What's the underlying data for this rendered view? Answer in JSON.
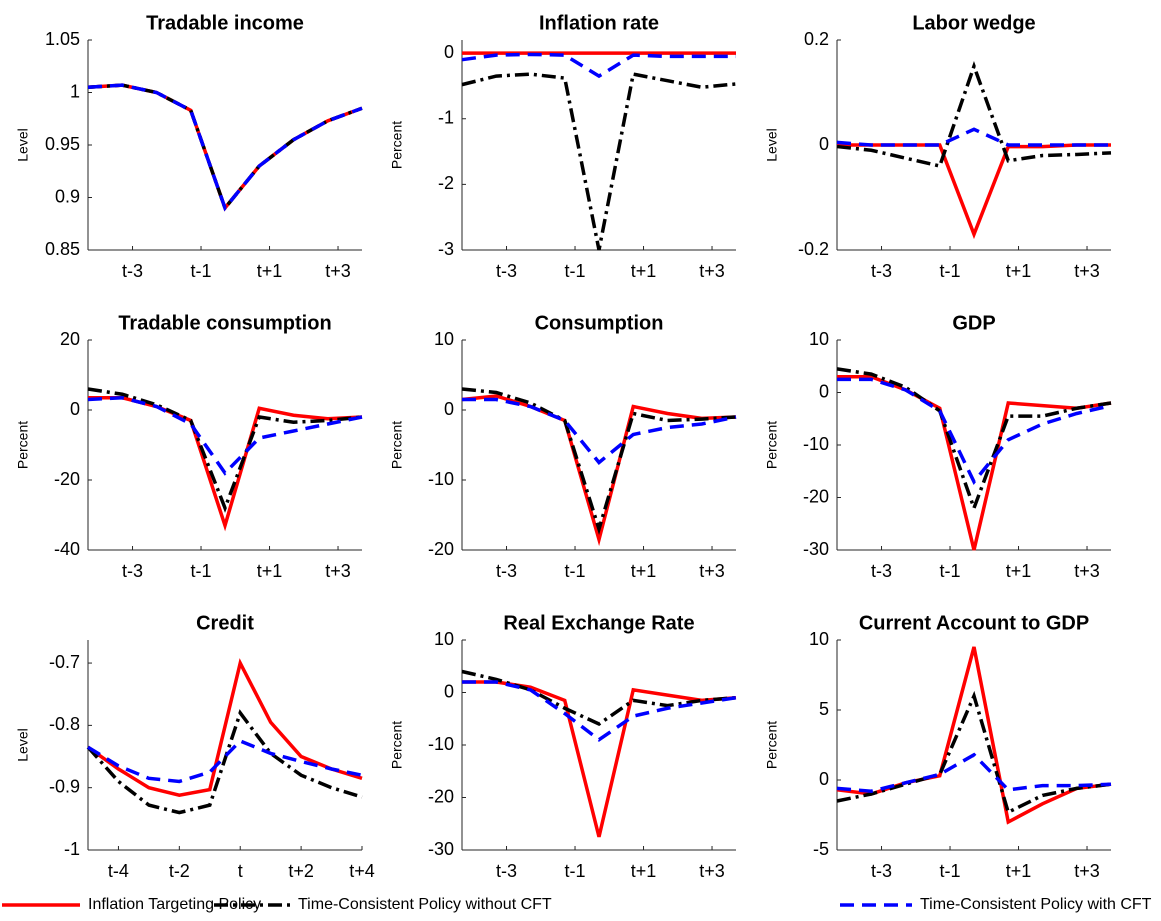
{
  "chart_data": [
    {
      "type": "line",
      "title": "Tradable income",
      "ylabel": "Level",
      "x": [
        1,
        2,
        3,
        4,
        5,
        6,
        7,
        8,
        9
      ],
      "xlim": [
        1,
        9
      ],
      "xticks": [
        {
          "value": 2.3,
          "label": "t-3"
        },
        {
          "value": 4.3,
          "label": "t-1"
        },
        {
          "value": 6.3,
          "label": "t+1"
        },
        {
          "value": 8.3,
          "label": "t+3"
        }
      ],
      "ylim": [
        0.85,
        1.05
      ],
      "yticks": [
        0.85,
        0.9,
        0.95,
        1,
        1.05
      ],
      "series": [
        {
          "name": "Inflation Targeting Policy",
          "color": "#ff0000",
          "line_style": "-",
          "values": [
            1.005,
            1.007,
            1.0,
            0.983,
            0.89,
            0.93,
            0.955,
            0.973,
            0.985
          ]
        },
        {
          "name": "Time-Consistent Policy without CFT",
          "color": "#000000",
          "line_style": "-.",
          "values": [
            1.005,
            1.007,
            1.0,
            0.983,
            0.89,
            0.93,
            0.955,
            0.973,
            0.985
          ]
        },
        {
          "name": "Time-Consistent Policy with CFT",
          "color": "#0000ff",
          "line_style": "--",
          "values": [
            1.005,
            1.007,
            1.0,
            0.983,
            0.89,
            0.93,
            0.955,
            0.973,
            0.985
          ]
        }
      ]
    },
    {
      "type": "line",
      "title": "Inflation rate",
      "ylabel": "Percent",
      "x": [
        1,
        2,
        3,
        4,
        5,
        6,
        7,
        8,
        9
      ],
      "xlim": [
        1,
        9
      ],
      "xticks": [
        {
          "value": 2.3,
          "label": "t-3"
        },
        {
          "value": 4.3,
          "label": "t-1"
        },
        {
          "value": 6.3,
          "label": "t+1"
        },
        {
          "value": 8.3,
          "label": "t+3"
        }
      ],
      "ylim": [
        -3,
        0.2
      ],
      "yticks": [
        -3,
        -2,
        -1,
        0
      ],
      "series": [
        {
          "color": "#ff0000",
          "line_style": "-",
          "values": [
            0,
            0,
            0,
            0,
            0,
            0,
            0,
            0,
            0
          ]
        },
        {
          "color": "#000000",
          "line_style": "-.",
          "values": [
            -0.48,
            -0.35,
            -0.32,
            -0.38,
            -3.0,
            -0.32,
            -0.42,
            -0.52,
            -0.47
          ]
        },
        {
          "color": "#0000ff",
          "line_style": "--",
          "values": [
            -0.1,
            -0.03,
            -0.02,
            -0.03,
            -0.35,
            -0.03,
            -0.05,
            -0.05,
            -0.05
          ]
        }
      ]
    },
    {
      "type": "line",
      "title": "Labor wedge",
      "ylabel": "Level",
      "x": [
        1,
        2,
        3,
        4,
        5,
        6,
        7,
        8,
        9
      ],
      "xlim": [
        1,
        9
      ],
      "xticks": [
        {
          "value": 2.3,
          "label": "t-3"
        },
        {
          "value": 4.3,
          "label": "t-1"
        },
        {
          "value": 6.3,
          "label": "t+1"
        },
        {
          "value": 8.3,
          "label": "t+3"
        }
      ],
      "ylim": [
        -0.2,
        0.2
      ],
      "yticks": [
        -0.2,
        0,
        0.2
      ],
      "series": [
        {
          "color": "#ff0000",
          "line_style": "-",
          "values": [
            0,
            0,
            0,
            0,
            -0.17,
            -0.003,
            -0.003,
            0,
            0
          ]
        },
        {
          "color": "#000000",
          "line_style": "-.",
          "values": [
            -0.003,
            -0.01,
            -0.025,
            -0.04,
            0.15,
            -0.03,
            -0.02,
            -0.018,
            -0.015
          ]
        },
        {
          "color": "#0000ff",
          "line_style": "--",
          "values": [
            0.005,
            0,
            0,
            0,
            0.03,
            0,
            0,
            0,
            0
          ]
        }
      ]
    },
    {
      "type": "line",
      "title": "Tradable consumption",
      "ylabel": "Percent",
      "x": [
        1,
        2,
        3,
        4,
        5,
        6,
        7,
        8,
        9
      ],
      "xlim": [
        1,
        9
      ],
      "xticks": [
        {
          "value": 2.3,
          "label": "t-3"
        },
        {
          "value": 4.3,
          "label": "t-1"
        },
        {
          "value": 6.3,
          "label": "t+1"
        },
        {
          "value": 8.3,
          "label": "t+3"
        }
      ],
      "ylim": [
        -40,
        20
      ],
      "yticks": [
        -40,
        -20,
        0,
        20
      ],
      "series": [
        {
          "color": "#ff0000",
          "line_style": "-",
          "values": [
            3.5,
            3.5,
            1,
            -3,
            -33,
            0.5,
            -1.5,
            -2.5,
            -2
          ]
        },
        {
          "color": "#000000",
          "line_style": "-.",
          "values": [
            6,
            4.5,
            1.5,
            -3,
            -28,
            -2,
            -3.5,
            -3,
            -2
          ]
        },
        {
          "color": "#0000ff",
          "line_style": "--",
          "values": [
            3,
            3.5,
            1,
            -4,
            -18,
            -8,
            -6,
            -4,
            -2
          ]
        }
      ]
    },
    {
      "type": "line",
      "title": "Consumption",
      "ylabel": "Percent",
      "x": [
        1,
        2,
        3,
        4,
        5,
        6,
        7,
        8,
        9
      ],
      "xlim": [
        1,
        9
      ],
      "xticks": [
        {
          "value": 2.3,
          "label": "t-3"
        },
        {
          "value": 4.3,
          "label": "t-1"
        },
        {
          "value": 6.3,
          "label": "t+1"
        },
        {
          "value": 8.3,
          "label": "t+3"
        }
      ],
      "ylim": [
        -20,
        10
      ],
      "yticks": [
        -20,
        -10,
        0,
        10
      ],
      "series": [
        {
          "color": "#ff0000",
          "line_style": "-",
          "values": [
            1.5,
            2,
            0.5,
            -1.5,
            -18.5,
            0.5,
            -0.5,
            -1.2,
            -1
          ]
        },
        {
          "color": "#000000",
          "line_style": "-.",
          "values": [
            3,
            2.5,
            1,
            -1.5,
            -17,
            -0.5,
            -1.5,
            -1.3,
            -1
          ]
        },
        {
          "color": "#0000ff",
          "line_style": "--",
          "values": [
            1.5,
            1.5,
            0.5,
            -1.5,
            -7.5,
            -3.5,
            -2.5,
            -2,
            -1
          ]
        }
      ]
    },
    {
      "type": "line",
      "title": "GDP",
      "ylabel": "Percent",
      "x": [
        1,
        2,
        3,
        4,
        5,
        6,
        7,
        8,
        9
      ],
      "xlim": [
        1,
        9
      ],
      "xticks": [
        {
          "value": 2.3,
          "label": "t-3"
        },
        {
          "value": 4.3,
          "label": "t-1"
        },
        {
          "value": 6.3,
          "label": "t+1"
        },
        {
          "value": 8.3,
          "label": "t+3"
        }
      ],
      "ylim": [
        -30,
        10
      ],
      "yticks": [
        -30,
        -20,
        -10,
        0,
        10
      ],
      "series": [
        {
          "color": "#ff0000",
          "line_style": "-",
          "values": [
            3,
            3,
            0.5,
            -3,
            -30,
            -2,
            -2.5,
            -3,
            -2
          ]
        },
        {
          "color": "#000000",
          "line_style": "-.",
          "values": [
            4.5,
            3.5,
            1,
            -3.5,
            -22,
            -4.5,
            -4.5,
            -3,
            -2
          ]
        },
        {
          "color": "#0000ff",
          "line_style": "--",
          "values": [
            2.5,
            2.5,
            0.5,
            -3.5,
            -17,
            -9,
            -6,
            -4,
            -2.5
          ]
        }
      ]
    },
    {
      "type": "line",
      "title": "Credit",
      "ylabel": "Level",
      "x": [
        1,
        2,
        3,
        4,
        5,
        6,
        7,
        8,
        9,
        10
      ],
      "xlim": [
        1,
        10
      ],
      "xticks": [
        {
          "value": 2,
          "label": "t-4"
        },
        {
          "value": 4,
          "label": "t-2"
        },
        {
          "value": 6,
          "label": "t"
        },
        {
          "value": 8,
          "label": "t+2"
        },
        {
          "value": 10,
          "label": "t+4"
        }
      ],
      "ylim": [
        -1,
        -0.663
      ],
      "yticks": [
        -1,
        -0.9,
        -0.8,
        -0.7
      ],
      "series": [
        {
          "color": "#ff0000",
          "line_style": "-",
          "values": [
            -0.835,
            -0.87,
            -0.9,
            -0.912,
            -0.903,
            -0.7,
            -0.795,
            -0.85,
            -0.87,
            -0.885
          ]
        },
        {
          "color": "#000000",
          "line_style": "-.",
          "values": [
            -0.835,
            -0.89,
            -0.928,
            -0.94,
            -0.928,
            -0.78,
            -0.845,
            -0.88,
            -0.9,
            -0.915
          ]
        },
        {
          "color": "#0000ff",
          "line_style": "--",
          "values": [
            -0.835,
            -0.865,
            -0.885,
            -0.89,
            -0.875,
            -0.825,
            -0.845,
            -0.858,
            -0.87,
            -0.88
          ]
        }
      ]
    },
    {
      "type": "line",
      "title": "Real Exchange Rate",
      "ylabel": "Percent",
      "x": [
        1,
        2,
        3,
        4,
        5,
        6,
        7,
        8,
        9
      ],
      "xlim": [
        1,
        9
      ],
      "xticks": [
        {
          "value": 2.3,
          "label": "t-3"
        },
        {
          "value": 4.3,
          "label": "t-1"
        },
        {
          "value": 6.3,
          "label": "t+1"
        },
        {
          "value": 8.3,
          "label": "t+3"
        }
      ],
      "ylim": [
        -30,
        10
      ],
      "yticks": [
        -30,
        -20,
        -10,
        0,
        10
      ],
      "series": [
        {
          "color": "#ff0000",
          "line_style": "-",
          "values": [
            2,
            2,
            1,
            -1.5,
            -27.5,
            0.5,
            -0.5,
            -1.5,
            -1
          ]
        },
        {
          "color": "#000000",
          "line_style": "-.",
          "values": [
            4,
            2.5,
            0.5,
            -3,
            -6,
            -1.5,
            -2.5,
            -1.5,
            -1
          ]
        },
        {
          "color": "#0000ff",
          "line_style": "--",
          "values": [
            2,
            2,
            0.5,
            -4,
            -9,
            -4.5,
            -3,
            -2,
            -1
          ]
        }
      ]
    },
    {
      "type": "line",
      "title": "Current Account to GDP",
      "ylabel": "Percent",
      "x": [
        1,
        2,
        3,
        4,
        5,
        6,
        7,
        8,
        9
      ],
      "xlim": [
        1,
        9
      ],
      "xticks": [
        {
          "value": 2.3,
          "label": "t-3"
        },
        {
          "value": 4.3,
          "label": "t-1"
        },
        {
          "value": 6.3,
          "label": "t+1"
        },
        {
          "value": 8.3,
          "label": "t+3"
        }
      ],
      "ylim": [
        -5,
        10
      ],
      "yticks": [
        -5,
        0,
        5,
        10
      ],
      "series": [
        {
          "color": "#ff0000",
          "line_style": "-",
          "values": [
            -0.7,
            -1,
            -0.2,
            0.3,
            9.5,
            -3,
            -1.7,
            -0.6,
            -0.3
          ]
        },
        {
          "color": "#000000",
          "line_style": "-.",
          "values": [
            -1.5,
            -1,
            -0.3,
            0.4,
            6,
            -2.3,
            -1.1,
            -0.6,
            -0.3
          ]
        },
        {
          "color": "#0000ff",
          "line_style": "--",
          "values": [
            -0.6,
            -0.8,
            -0.2,
            0.4,
            1.8,
            -0.7,
            -0.4,
            -0.4,
            -0.3
          ]
        }
      ]
    }
  ]
}
